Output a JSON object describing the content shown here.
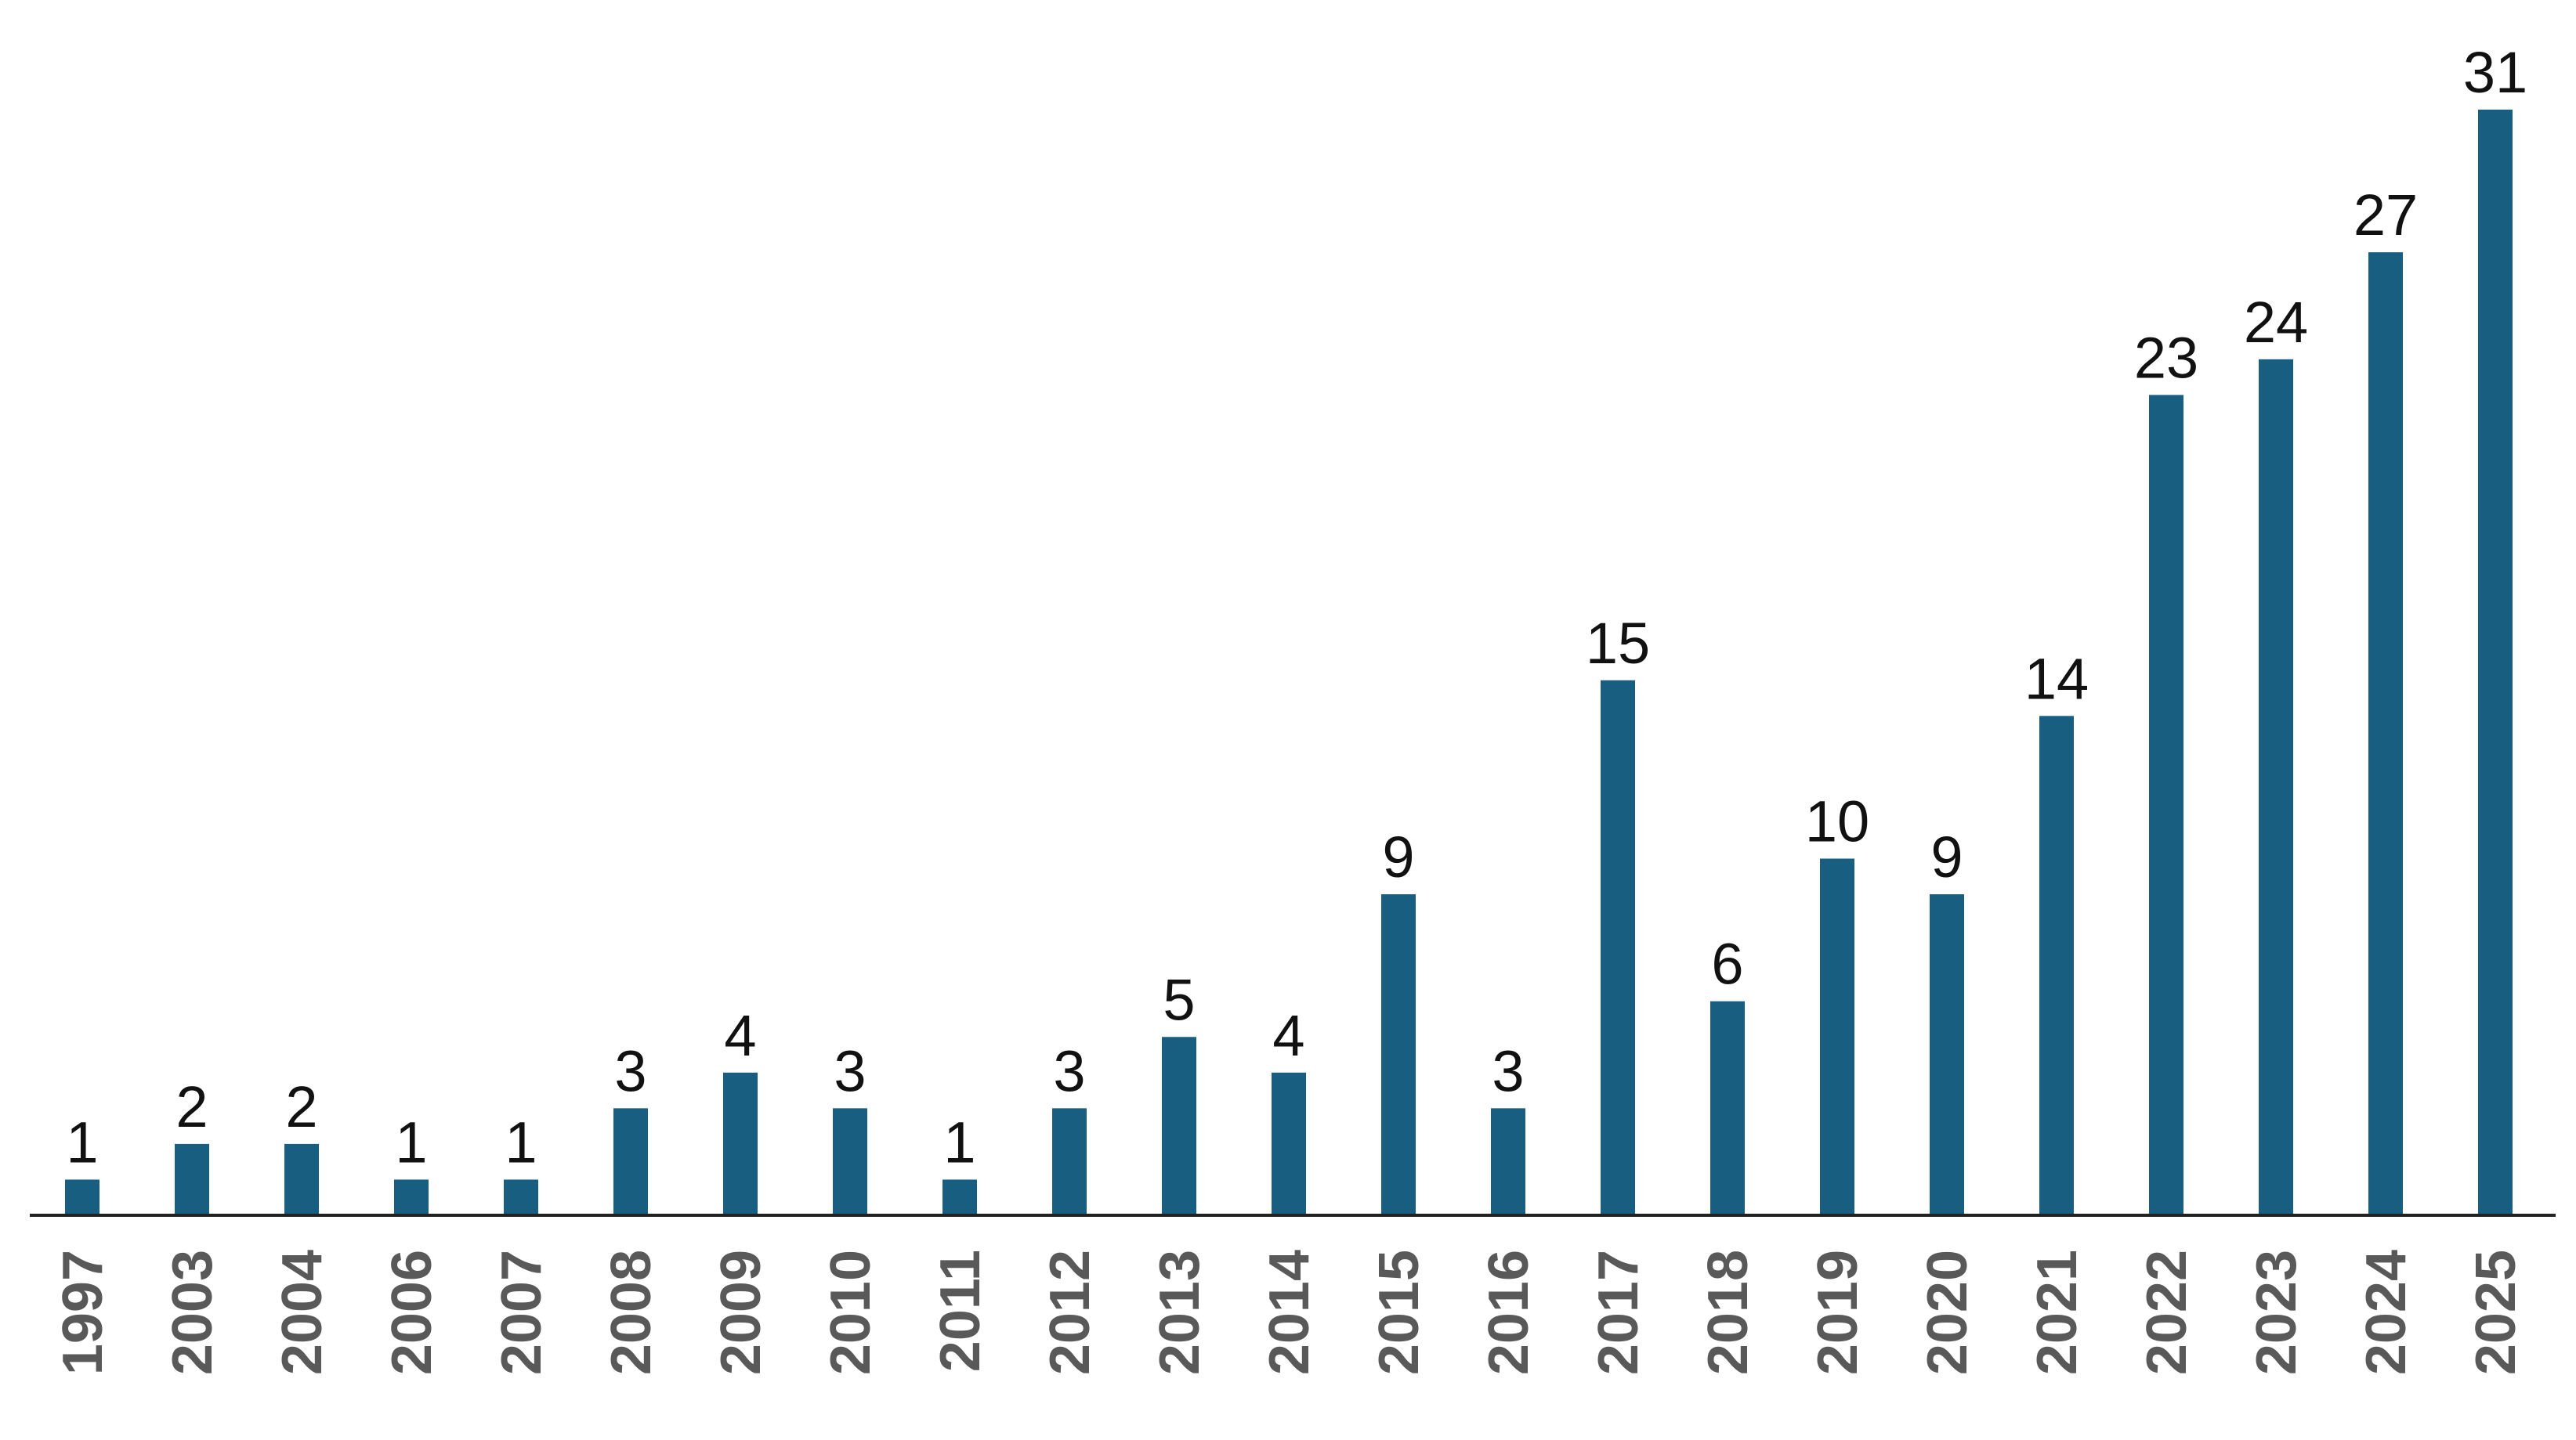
{
  "chart_data": {
    "type": "bar",
    "categories": [
      "1997",
      "2003",
      "2004",
      "2006",
      "2007",
      "2008",
      "2009",
      "2010",
      "2011",
      "2012",
      "2013",
      "2014",
      "2015",
      "2016",
      "2017",
      "2018",
      "2019",
      "2020",
      "2021",
      "2022",
      "2023",
      "2024",
      "2025"
    ],
    "values": [
      1,
      2,
      2,
      1,
      1,
      3,
      4,
      3,
      1,
      3,
      5,
      4,
      9,
      3,
      15,
      6,
      10,
      9,
      14,
      23,
      24,
      27,
      31
    ],
    "color": "#175e80"
  }
}
